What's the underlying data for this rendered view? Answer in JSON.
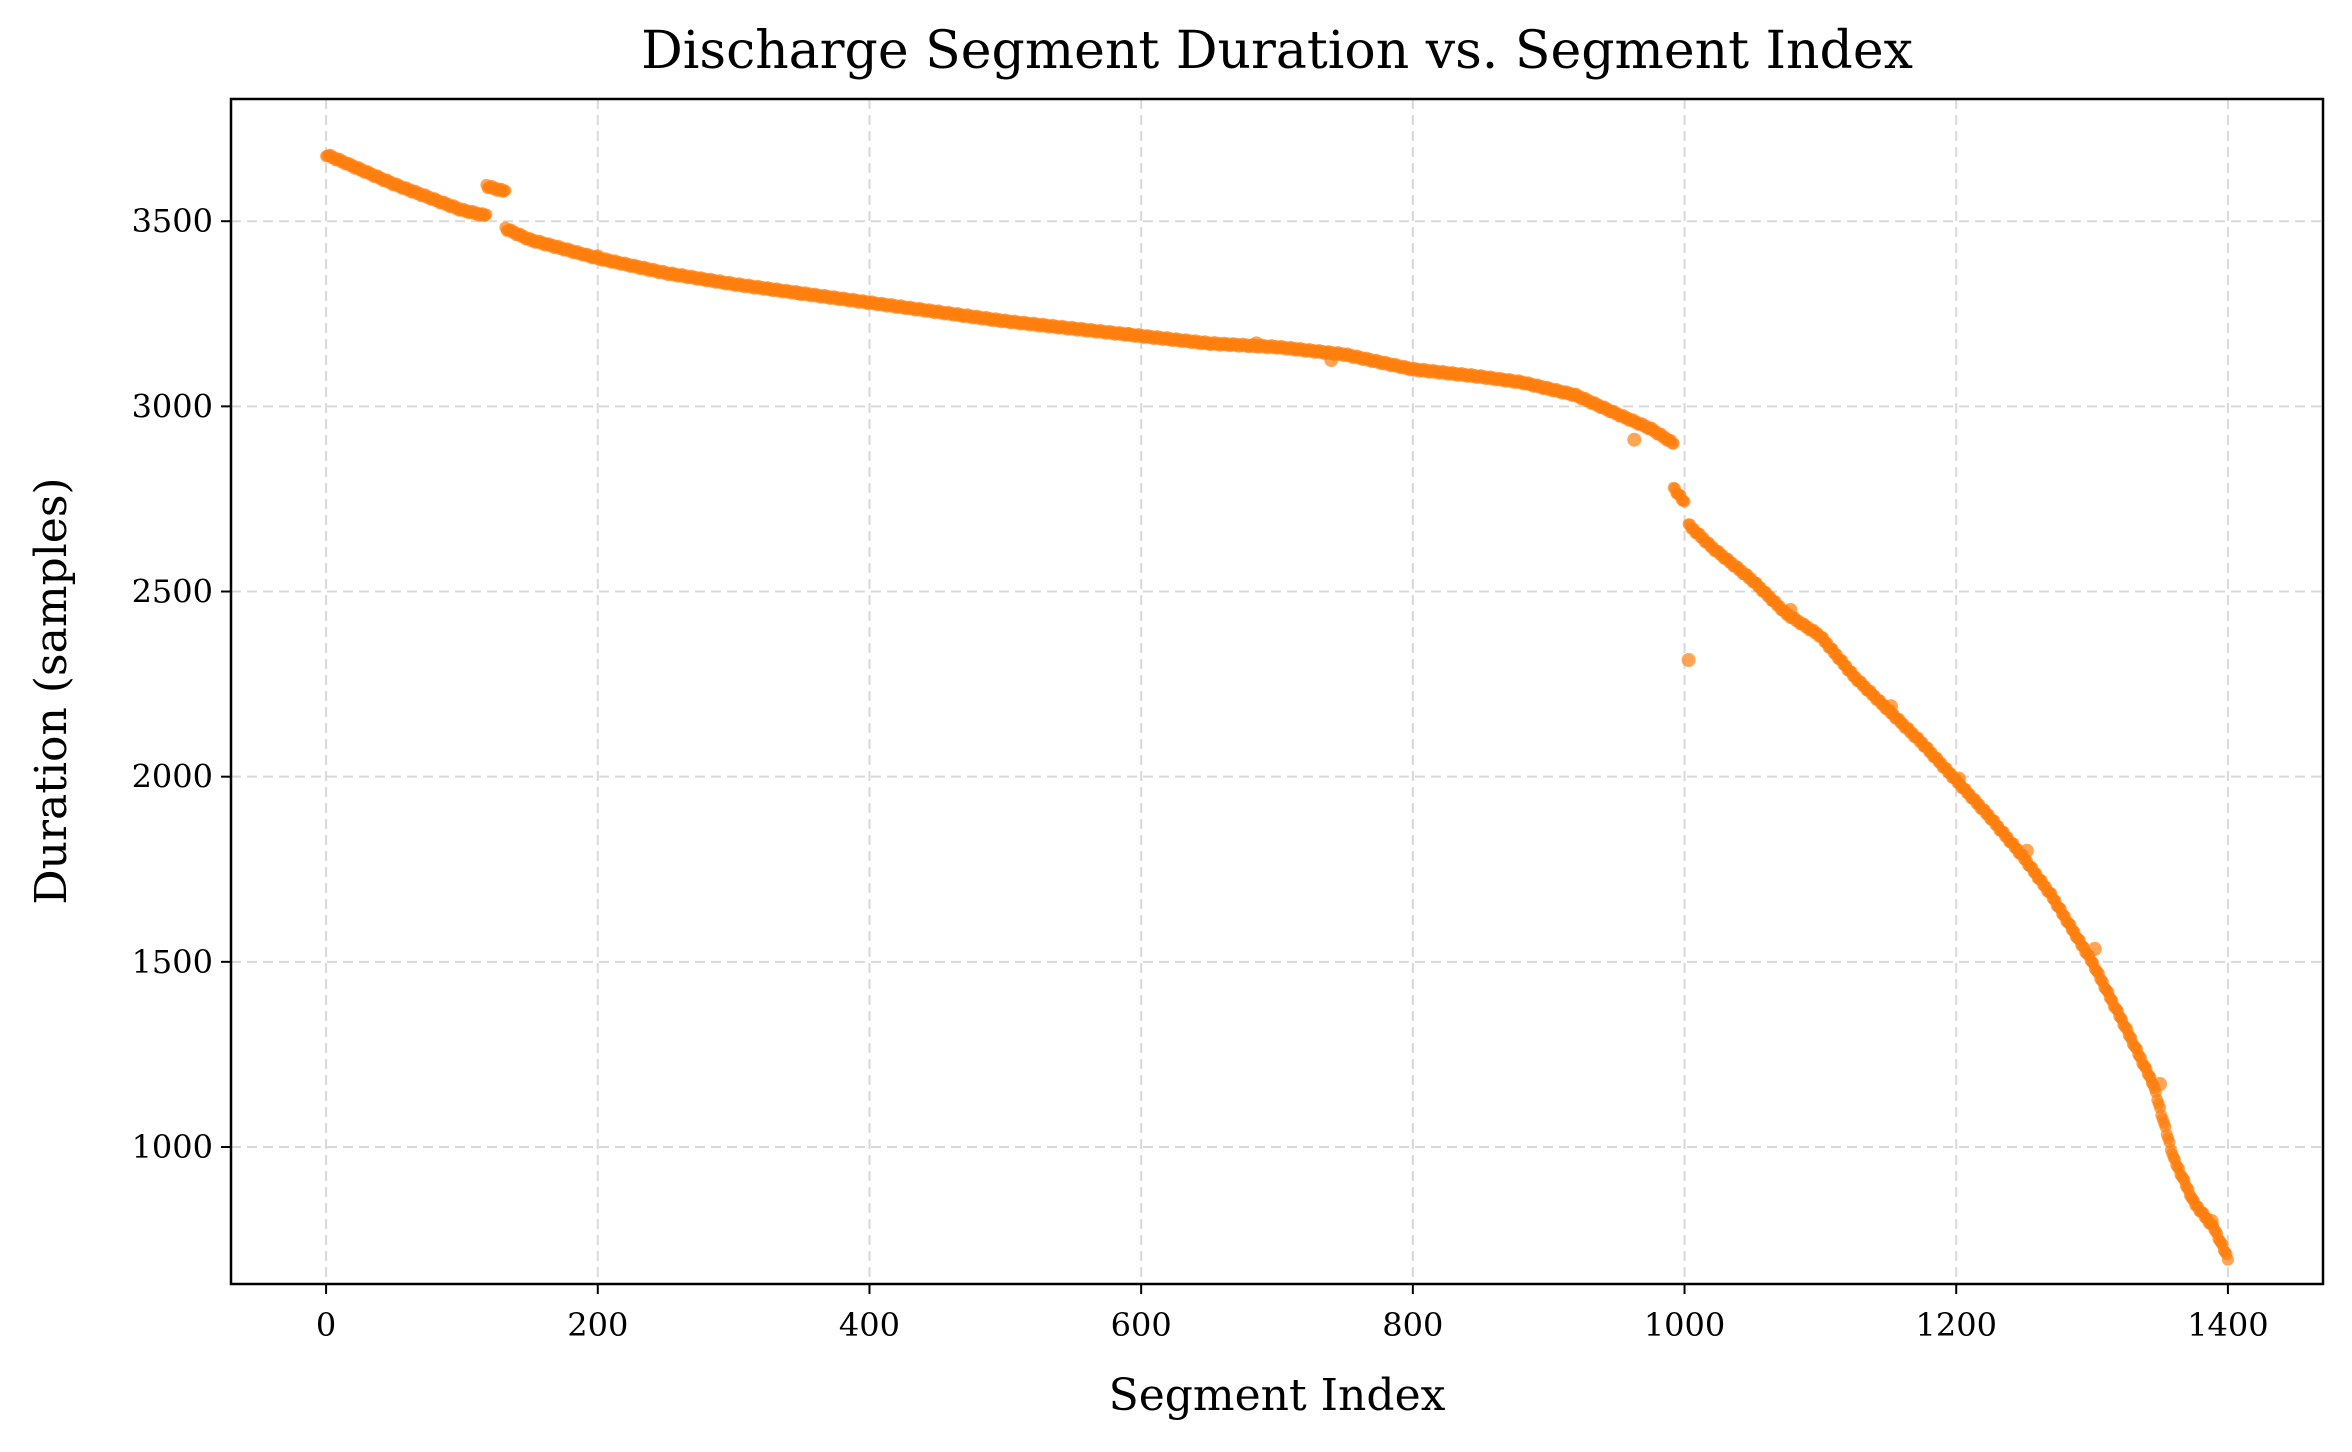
{
  "chart_data": {
    "type": "scatter",
    "title": "Discharge Segment Duration vs. Segment Index",
    "xlabel": "Segment Index",
    "ylabel": "Duration (samples)",
    "xlim": [
      -70,
      1470
    ],
    "ylim": [
      630,
      3830
    ],
    "xticks": [
      0,
      200,
      400,
      600,
      800,
      1000,
      1200,
      1400
    ],
    "yticks": [
      1000,
      1500,
      2000,
      2500,
      3000,
      3500
    ],
    "xtick_labels": [
      "0",
      "200",
      "400",
      "600",
      "800",
      "1000",
      "1200",
      "1400"
    ],
    "ytick_labels": [
      "1000",
      "1500",
      "2000",
      "2500",
      "3000",
      "3500"
    ],
    "grid": true,
    "marker_color": "#ff7f0e",
    "series": [
      {
        "segments": [
          [
            [
              0,
              3680
            ],
            [
              50,
              3600
            ],
            [
              100,
              3530
            ],
            [
              118,
              3515
            ]
          ],
          [
            [
              118,
              3595
            ],
            [
              132,
              3580
            ]
          ],
          [
            [
              132,
              3480
            ],
            [
              150,
              3450
            ],
            [
              200,
              3400
            ],
            [
              250,
              3360
            ],
            [
              300,
              3330
            ],
            [
              350,
              3305
            ],
            [
              400,
              3280
            ],
            [
              450,
              3255
            ],
            [
              500,
              3230
            ],
            [
              550,
              3210
            ],
            [
              600,
              3190
            ],
            [
              650,
              3170
            ],
            [
              700,
              3160
            ],
            [
              750,
              3140
            ],
            [
              800,
              3100
            ],
            [
              850,
              3080
            ],
            [
              880,
              3065
            ],
            [
              920,
              3030
            ],
            [
              950,
              2980
            ],
            [
              975,
              2940
            ],
            [
              992,
              2900
            ]
          ],
          [
            [
              992,
              2780
            ],
            [
              1000,
              2740
            ]
          ],
          [
            [
              1003,
              2680
            ],
            [
              1020,
              2620
            ],
            [
              1050,
              2530
            ],
            [
              1075,
              2440
            ],
            [
              1100,
              2380
            ],
            [
              1125,
              2270
            ],
            [
              1150,
              2180
            ],
            [
              1175,
              2090
            ],
            [
              1200,
              1990
            ],
            [
              1225,
              1890
            ],
            [
              1250,
              1780
            ],
            [
              1270,
              1680
            ],
            [
              1300,
              1500
            ],
            [
              1325,
              1320
            ],
            [
              1345,
              1170
            ],
            [
              1360,
              970
            ],
            [
              1375,
              850
            ],
            [
              1390,
              780
            ],
            [
              1400,
              700
            ]
          ]
        ],
        "outliers": [
          [
            963,
            2910
          ],
          [
            1003,
            2315
          ],
          [
            1078,
            2450
          ],
          [
            1152,
            2190
          ],
          [
            1202,
            1995
          ],
          [
            1252,
            1800
          ],
          [
            1302,
            1535
          ],
          [
            1350,
            1170
          ],
          [
            1388,
            800
          ],
          [
            740,
            3125
          ],
          [
            685,
            3170
          ],
          [
            590,
            3195
          ],
          [
            348,
            3305
          ],
          [
            200,
            3405
          ]
        ]
      }
    ]
  }
}
